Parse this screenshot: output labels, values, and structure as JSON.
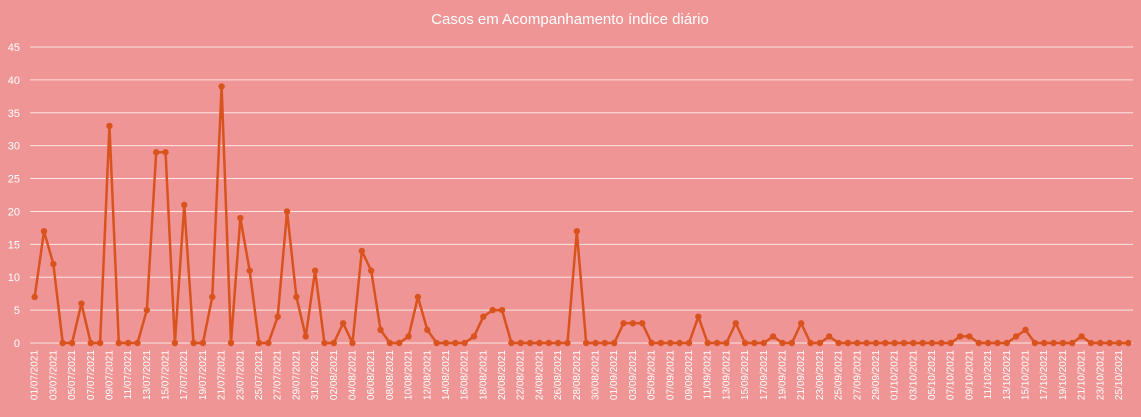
{
  "chart_data": {
    "type": "line",
    "title": "Casos em Acompanhamento índice diário",
    "xlabel": "",
    "ylabel": "",
    "ylim": [
      0,
      45
    ],
    "yticks": [
      0,
      5,
      10,
      15,
      20,
      25,
      30,
      35,
      40,
      45
    ],
    "grid": true,
    "legend": "none",
    "colors": {
      "background": "#ef9595",
      "line": "#d9531e",
      "text": "#ffffff",
      "grid": "#ffffff"
    },
    "x": [
      "01/07/2021",
      "02/07/2021",
      "03/07/2021",
      "04/07/2021",
      "05/07/2021",
      "06/07/2021",
      "07/07/2021",
      "08/07/2021",
      "09/07/2021",
      "10/07/2021",
      "11/07/2021",
      "12/07/2021",
      "13/07/2021",
      "14/07/2021",
      "15/07/2021",
      "16/07/2021",
      "17/07/2021",
      "18/07/2021",
      "19/07/2021",
      "20/07/2021",
      "21/07/2021",
      "22/07/2021",
      "23/07/2021",
      "24/07/2021",
      "25/07/2021",
      "26/07/2021",
      "27/07/2021",
      "28/07/2021",
      "29/07/2021",
      "30/07/2021",
      "31/07/2021",
      "01/08/2021",
      "02/08/2021",
      "03/08/2021",
      "04/08/2021",
      "05/08/2021",
      "06/08/2021",
      "07/08/2021",
      "08/08/2021",
      "09/08/2021",
      "10/08/2021",
      "11/08/2021",
      "12/08/2021",
      "13/08/2021",
      "14/08/2021",
      "15/08/2021",
      "16/08/2021",
      "17/08/2021",
      "18/08/2021",
      "19/08/2021",
      "20/08/2021",
      "21/08/2021",
      "22/08/2021",
      "23/08/2021",
      "24/08/2021",
      "25/08/2021",
      "26/08/2021",
      "27/08/2021",
      "28/08/2021",
      "29/08/2021",
      "30/08/2021",
      "31/08/2021",
      "01/09/2021",
      "02/09/2021",
      "03/09/2021",
      "04/09/2021",
      "05/09/2021",
      "06/09/2021",
      "07/09/2021",
      "08/09/2021",
      "09/09/2021",
      "10/09/2021",
      "11/09/2021",
      "12/09/2021",
      "13/09/2021",
      "14/09/2021",
      "15/09/2021",
      "16/09/2021",
      "17/09/2021",
      "18/09/2021",
      "19/09/2021",
      "20/09/2021",
      "21/09/2021",
      "22/09/2021",
      "23/09/2021",
      "24/09/2021",
      "25/09/2021",
      "26/09/2021",
      "27/09/2021",
      "28/09/2021",
      "29/09/2021",
      "30/09/2021",
      "01/10/2021",
      "02/10/2021",
      "03/10/2021",
      "04/10/2021",
      "05/10/2021",
      "06/10/2021",
      "07/10/2021",
      "08/10/2021",
      "09/10/2021",
      "10/10/2021",
      "11/10/2021",
      "12/10/2021",
      "13/10/2021",
      "14/10/2021",
      "15/10/2021",
      "16/10/2021",
      "17/10/2021",
      "18/10/2021",
      "19/10/2021",
      "20/10/2021",
      "21/10/2021",
      "22/10/2021",
      "23/10/2021",
      "24/10/2021",
      "25/10/2021",
      "26/10/2021"
    ],
    "series": [
      {
        "name": "",
        "values": [
          7,
          17,
          12,
          0,
          0,
          6,
          0,
          0,
          33,
          0,
          0,
          0,
          5,
          29,
          29,
          0,
          21,
          0,
          0,
          7,
          39,
          0,
          19,
          11,
          0,
          0,
          4,
          20,
          7,
          1,
          11,
          0,
          0,
          3,
          0,
          14,
          11,
          2,
          0,
          0,
          1,
          7,
          2,
          0,
          0,
          0,
          0,
          1,
          4,
          5,
          5,
          0,
          0,
          0,
          0,
          0,
          0,
          0,
          17,
          0,
          0,
          0,
          0,
          3,
          3,
          3,
          0,
          0,
          0,
          0,
          0,
          4,
          0,
          0,
          0,
          3,
          0,
          0,
          0,
          1,
          0,
          0,
          3,
          0,
          0,
          1,
          0,
          0,
          0,
          0,
          0,
          0,
          0,
          0,
          0,
          0,
          0,
          0,
          0,
          1,
          1,
          0,
          0,
          0,
          0,
          1,
          2,
          0,
          0,
          0,
          0,
          0,
          1,
          0,
          0,
          0,
          0,
          0
        ]
      }
    ]
  }
}
